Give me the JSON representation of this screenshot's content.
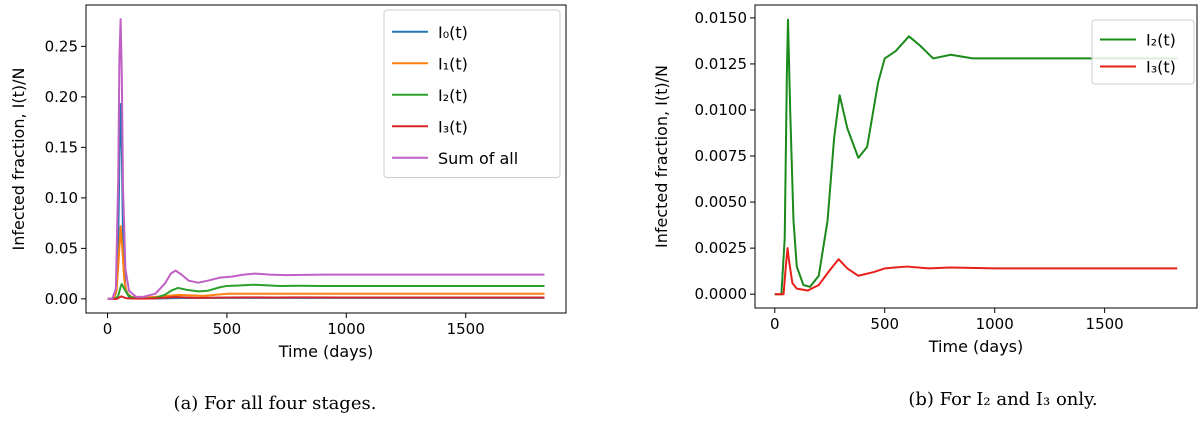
{
  "chart_data": [
    {
      "type": "line",
      "caption": "(a) For all four stages.",
      "xlabel": "Time (days)",
      "ylabel": "Infected fraction, I(t)/N",
      "xlim": [
        -90,
        1920
      ],
      "ylim": [
        -0.014,
        0.291
      ],
      "xticks": [
        0,
        500,
        1000,
        1500
      ],
      "xtick_labels": [
        "0",
        "500",
        "1000",
        "1500"
      ],
      "yticks": [
        0.0,
        0.05,
        0.1,
        0.15,
        0.2,
        0.25
      ],
      "ytick_labels": [
        "0.00",
        "0.05",
        "0.10",
        "0.15",
        "0.20",
        "0.25"
      ],
      "legend_position": "top-right",
      "series": [
        {
          "name": "I₀(t)",
          "color": "#1f77b4",
          "x": [
            0,
            20,
            35,
            45,
            50,
            55,
            60,
            65,
            75,
            90,
            120,
            200,
            300,
            500,
            1830
          ],
          "y": [
            0,
            0,
            0.005,
            0.06,
            0.14,
            0.193,
            0.15,
            0.06,
            0.01,
            0.002,
            0.0005,
            0.0003,
            0.0008,
            0.001,
            0.001
          ]
        },
        {
          "name": "I₁(t)",
          "color": "#ff7f0e",
          "x": [
            0,
            25,
            38,
            47,
            55,
            62,
            70,
            80,
            100,
            140,
            200,
            300,
            400,
            500,
            700,
            1830
          ],
          "y": [
            0,
            0,
            0.008,
            0.04,
            0.072,
            0.05,
            0.02,
            0.006,
            0.002,
            0.001,
            0.002,
            0.004,
            0.003,
            0.005,
            0.005,
            0.005
          ]
        },
        {
          "name": "I₂(t)",
          "color": "#2ca02c",
          "x": [
            0,
            30,
            45,
            55,
            60,
            70,
            85,
            100,
            130,
            160,
            200,
            240,
            270,
            295,
            330,
            380,
            420,
            470,
            500,
            550,
            610,
            660,
            720,
            800,
            900,
            1000,
            1200,
            1500,
            1830
          ],
          "y": [
            0,
            0,
            0.003,
            0.012,
            0.0148,
            0.01,
            0.004,
            0.0015,
            0.0005,
            0.0004,
            0.001,
            0.004,
            0.0085,
            0.0108,
            0.009,
            0.0074,
            0.008,
            0.0115,
            0.0128,
            0.0132,
            0.014,
            0.0135,
            0.0128,
            0.013,
            0.0128,
            0.0128,
            0.0128,
            0.0128,
            0.0128
          ]
        },
        {
          "name": "I₃(t)",
          "color": "#d62728",
          "x": [
            0,
            40,
            50,
            58,
            65,
            80,
            100,
            150,
            200,
            250,
            290,
            330,
            380,
            450,
            500,
            600,
            700,
            800,
            1000,
            1830
          ],
          "y": [
            0,
            0,
            0.0015,
            0.0025,
            0.0018,
            0.0006,
            0.0003,
            0.0002,
            0.0005,
            0.0013,
            0.0019,
            0.0014,
            0.001,
            0.0012,
            0.0014,
            0.0015,
            0.0014,
            0.00145,
            0.0014,
            0.0014
          ]
        },
        {
          "name": "Sum of all",
          "color": "#c05fc4",
          "x": [
            0,
            20,
            35,
            45,
            50,
            55,
            60,
            65,
            75,
            90,
            120,
            150,
            200,
            240,
            265,
            285,
            310,
            340,
            380,
            420,
            470,
            520,
            570,
            620,
            680,
            750,
            900,
            1100,
            1400,
            1830
          ],
          "y": [
            0,
            0,
            0.01,
            0.12,
            0.24,
            0.277,
            0.22,
            0.11,
            0.03,
            0.008,
            0.002,
            0.002,
            0.005,
            0.015,
            0.025,
            0.028,
            0.024,
            0.018,
            0.016,
            0.018,
            0.021,
            0.022,
            0.024,
            0.025,
            0.024,
            0.0235,
            0.024,
            0.024,
            0.024,
            0.024
          ]
        }
      ]
    },
    {
      "type": "line",
      "caption": "(b) For I₂ and I₃ only.",
      "xlabel": "Time (days)",
      "ylabel": "Infected fraction, I(t)/N",
      "xlim": [
        -90,
        1920
      ],
      "ylim": [
        -0.00075,
        0.0157
      ],
      "xticks": [
        0,
        500,
        1000,
        1500
      ],
      "xtick_labels": [
        "0",
        "500",
        "1000",
        "1500"
      ],
      "yticks": [
        0.0,
        0.0025,
        0.005,
        0.0075,
        0.01,
        0.0125,
        0.015
      ],
      "ytick_labels": [
        "0.0000",
        "0.0025",
        "0.0050",
        "0.0075",
        "0.0100",
        "0.0125",
        "0.0150"
      ],
      "legend_position": "top-right",
      "series": [
        {
          "name": "I₂(t)",
          "color": "#1a8a1a",
          "x": [
            0,
            30,
            45,
            55,
            60,
            70,
            85,
            100,
            130,
            160,
            200,
            240,
            270,
            295,
            330,
            380,
            420,
            470,
            500,
            550,
            610,
            660,
            720,
            800,
            900,
            1000,
            1200,
            1500,
            1830
          ],
          "y": [
            0,
            0,
            0.003,
            0.012,
            0.0149,
            0.01,
            0.004,
            0.0015,
            0.0005,
            0.0004,
            0.001,
            0.004,
            0.0085,
            0.0108,
            0.009,
            0.0074,
            0.008,
            0.0115,
            0.0128,
            0.0132,
            0.014,
            0.0135,
            0.0128,
            0.013,
            0.0128,
            0.0128,
            0.0128,
            0.0128,
            0.0128
          ]
        },
        {
          "name": "I₃(t)",
          "color": "#e8201a",
          "x": [
            0,
            40,
            50,
            58,
            65,
            80,
            100,
            150,
            200,
            250,
            290,
            330,
            380,
            450,
            500,
            600,
            700,
            800,
            1000,
            1830
          ],
          "y": [
            0,
            0,
            0.0015,
            0.0025,
            0.0018,
            0.0006,
            0.0003,
            0.0002,
            0.0005,
            0.0013,
            0.0019,
            0.0014,
            0.001,
            0.0012,
            0.0014,
            0.0015,
            0.0014,
            0.00145,
            0.0014,
            0.0014
          ]
        }
      ]
    }
  ]
}
